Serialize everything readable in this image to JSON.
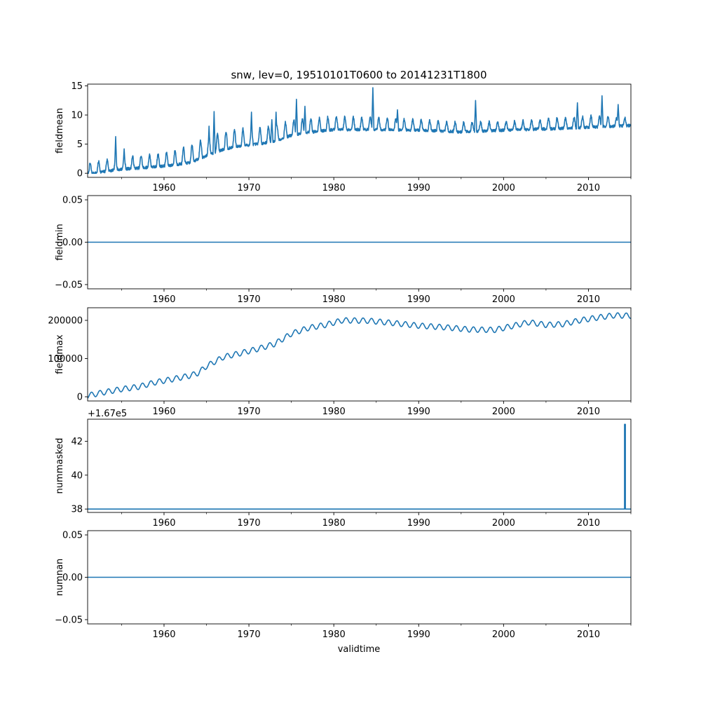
{
  "figure": {
    "title": "snw, lev=0, 19510101T0600 to 20141231T1800",
    "xlabel": "validtime",
    "line_color": "#1f77b4"
  },
  "chart_data": [
    {
      "type": "line",
      "name": "fieldmean",
      "ylabel": "fieldmean",
      "xlim": [
        1951.0,
        2015.0
      ],
      "ylim": [
        -0.7,
        15.3
      ],
      "yticks": [
        0,
        5,
        10,
        15
      ],
      "ytick_labels": [
        "0",
        "5",
        "10",
        "15"
      ],
      "offset_text": "",
      "baseline": [
        [
          1951,
          0.3
        ],
        [
          1953,
          0.8
        ],
        [
          1955,
          1.2
        ],
        [
          1957,
          1.4
        ],
        [
          1959,
          1.6
        ],
        [
          1961,
          1.9
        ],
        [
          1963,
          2.3
        ],
        [
          1965,
          3.5
        ],
        [
          1967,
          4.6
        ],
        [
          1969,
          5.2
        ],
        [
          1971,
          5.5
        ],
        [
          1973,
          6.0
        ],
        [
          1975,
          7.0
        ],
        [
          1977,
          7.5
        ],
        [
          1980,
          8.0
        ],
        [
          1985,
          8.0
        ],
        [
          1990,
          7.9
        ],
        [
          1995,
          7.6
        ],
        [
          2000,
          7.9
        ],
        [
          2005,
          8.1
        ],
        [
          2010,
          8.4
        ],
        [
          2015,
          8.7
        ]
      ],
      "amplitude": [
        [
          1951,
          1.8
        ],
        [
          1955,
          2.0
        ],
        [
          1960,
          2.2
        ],
        [
          1965,
          3.2
        ],
        [
          1970,
          2.8
        ],
        [
          1975,
          2.5
        ],
        [
          1980,
          2.2
        ],
        [
          1990,
          1.8
        ],
        [
          2000,
          1.4
        ],
        [
          2010,
          1.9
        ],
        [
          2015,
          1.2
        ]
      ],
      "spikes": [
        [
          1954.3,
          6.3
        ],
        [
          1955.3,
          4.2
        ],
        [
          1965.3,
          8.1
        ],
        [
          1965.9,
          10.6
        ],
        [
          1970.3,
          10.5
        ],
        [
          1972.7,
          9.2
        ],
        [
          1973.2,
          10.5
        ],
        [
          1975.6,
          12.7
        ],
        [
          1976.6,
          11.5
        ],
        [
          1984.6,
          14.7
        ],
        [
          1987.5,
          10.9
        ],
        [
          1996.7,
          12.5
        ],
        [
          2008.7,
          12.1
        ],
        [
          2011.6,
          13.3
        ],
        [
          2013.5,
          11.8
        ]
      ]
    },
    {
      "type": "line",
      "name": "fieldmin",
      "ylabel": "fieldmin",
      "xlim": [
        1951.0,
        2015.0
      ],
      "ylim": [
        -0.055,
        0.055
      ],
      "yticks": [
        -0.05,
        0.0,
        0.05
      ],
      "ytick_labels": [
        "−0.05",
        "0.00",
        "0.05"
      ],
      "offset_text": "",
      "constant_value": 0.0
    },
    {
      "type": "line",
      "name": "fieldmax",
      "ylabel": "fieldmax",
      "xlim": [
        1951.0,
        2015.0
      ],
      "ylim": [
        -11000,
        233000
      ],
      "yticks": [
        0,
        100000,
        200000
      ],
      "ytick_labels": [
        "0",
        "100000",
        "200000"
      ],
      "offset_text": "",
      "trend": [
        [
          1951,
          3000
        ],
        [
          1953,
          12000
        ],
        [
          1955,
          20000
        ],
        [
          1957,
          26000
        ],
        [
          1959,
          38000
        ],
        [
          1961,
          46000
        ],
        [
          1963,
          55000
        ],
        [
          1964,
          62000
        ],
        [
          1965,
          80000
        ],
        [
          1967,
          104000
        ],
        [
          1969,
          114000
        ],
        [
          1971,
          125000
        ],
        [
          1973,
          138000
        ],
        [
          1975,
          165000
        ],
        [
          1977,
          180000
        ],
        [
          1979,
          188000
        ],
        [
          1981,
          200000
        ],
        [
          1984,
          199000
        ],
        [
          1987,
          193000
        ],
        [
          1990,
          186000
        ],
        [
          1993,
          182000
        ],
        [
          1996,
          176000
        ],
        [
          1999,
          175000
        ],
        [
          2001,
          185000
        ],
        [
          2003,
          195000
        ],
        [
          2005,
          188000
        ],
        [
          2007,
          190000
        ],
        [
          2009,
          200000
        ],
        [
          2011,
          207000
        ],
        [
          2013,
          213000
        ],
        [
          2015,
          212000
        ]
      ],
      "seasonal_amplitude": 7000
    },
    {
      "type": "line",
      "name": "nummasked",
      "ylabel": "nummasked",
      "xlim": [
        1951.0,
        2015.0
      ],
      "ylim": [
        37.8,
        43.3
      ],
      "yticks": [
        38,
        40,
        42
      ],
      "ytick_labels": [
        "38",
        "40",
        "42"
      ],
      "offset_text": "+1.67e5",
      "constant_value": 38,
      "spike": {
        "x": 2014.3,
        "y": 43
      }
    },
    {
      "type": "line",
      "name": "numnan",
      "ylabel": "numnan",
      "xlim": [
        1951.0,
        2015.0
      ],
      "ylim": [
        -0.055,
        0.055
      ],
      "yticks": [
        -0.05,
        0.0,
        0.05
      ],
      "ytick_labels": [
        "−0.05",
        "0.00",
        "0.05"
      ],
      "offset_text": "",
      "constant_value": 0.0
    }
  ],
  "x_axis": {
    "major_ticks": [
      1960,
      1970,
      1980,
      1990,
      2000,
      2010
    ],
    "major_labels": [
      "1960",
      "1970",
      "1980",
      "1990",
      "2000",
      "2010"
    ],
    "minor_ticks": [
      1955,
      1965,
      1975,
      1985,
      1995,
      2005,
      2015
    ]
  }
}
